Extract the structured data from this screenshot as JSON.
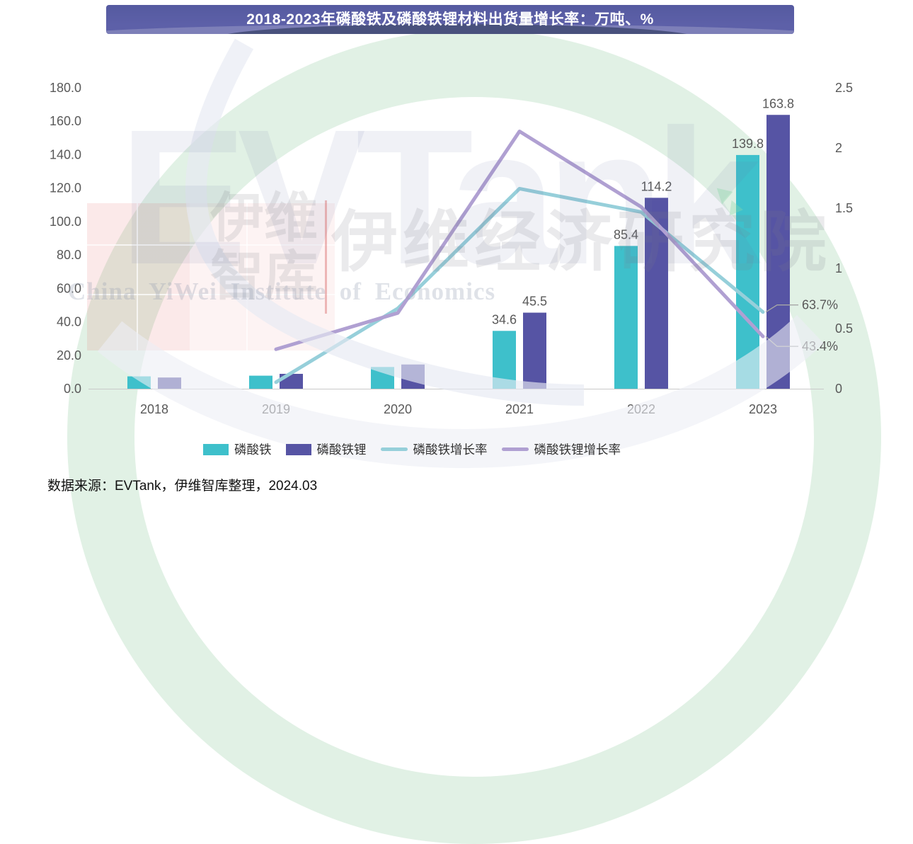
{
  "chart_data": {
    "type": "combo-bar-line",
    "title": "2018-2023年磷酸铁及磷酸铁锂材料出货量增长率：万吨、%",
    "categories": [
      "2018",
      "2019",
      "2020",
      "2021",
      "2022",
      "2023"
    ],
    "bar_series": [
      {
        "name": "磷酸铁",
        "color": "#3EC0CB",
        "values": [
          7.4,
          7.8,
          13.0,
          34.6,
          85.4,
          139.8
        ],
        "labels": [
          null,
          null,
          null,
          "34.6",
          "85.4",
          "139.8"
        ]
      },
      {
        "name": "磷酸铁锂",
        "color": "#5654A4",
        "values": [
          6.7,
          8.9,
          14.5,
          45.5,
          114.2,
          163.8
        ],
        "labels": [
          null,
          null,
          null,
          "45.5",
          "114.2",
          "163.8"
        ]
      }
    ],
    "line_series": [
      {
        "name": "磷酸铁增长率",
        "color": "#96CFDA",
        "values": [
          null,
          0.054,
          0.667,
          1.662,
          1.468,
          0.637
        ],
        "end_label": "63.7%"
      },
      {
        "name": "磷酸铁锂增长率",
        "color": "#B0A0D2",
        "values": [
          null,
          0.328,
          0.629,
          2.138,
          1.51,
          0.434
        ],
        "end_label": "43.4%"
      }
    ],
    "left_axis": {
      "min": 0,
      "max": 180,
      "step": 20,
      "tick_labels": [
        "0.0",
        "20.0",
        "40.0",
        "60.0",
        "80.0",
        "100.0",
        "120.0",
        "140.0",
        "160.0",
        "180.0"
      ]
    },
    "right_axis": {
      "min": 0,
      "max": 2.5,
      "step": 0.5,
      "tick_labels": [
        "0",
        "0.5",
        "1",
        "1.5",
        "2",
        "2.5"
      ]
    },
    "legend_position": "bottom"
  },
  "watermark": {
    "brand": "EVTank",
    "cn_lines": [
      "伊维",
      "智库"
    ],
    "cn_full": "伊维经济研究院",
    "en_full": "China YiWei Institute of Economics"
  },
  "source": {
    "text": "数据来源：EVTank，伊维智库整理，2024.03"
  },
  "colors": {
    "banner": "#5A5DA5",
    "axis_text": "#595959",
    "axis_line": "#C9C9C9",
    "leader_line": "#A6A6A6"
  }
}
